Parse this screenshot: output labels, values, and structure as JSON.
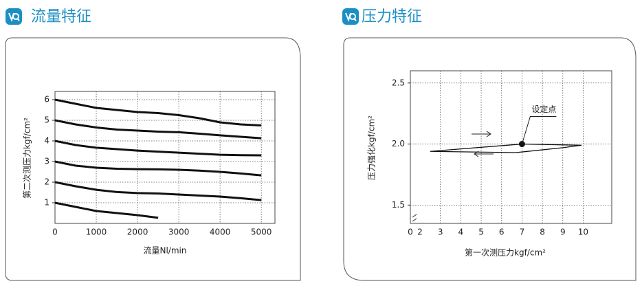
{
  "chart_data": [
    {
      "type": "line",
      "title": "流量特征",
      "x_label": "流量Nl/min",
      "y_label": "第二次测压力kgf/cm²",
      "x": [
        0,
        500,
        1000,
        1500,
        2000,
        2500,
        3000,
        3500,
        4000,
        4500,
        5000
      ],
      "series": [
        {
          "color": "#111111",
          "values": [
            6.0,
            5.8,
            5.6,
            5.5,
            5.4,
            5.35,
            5.25,
            5.1,
            4.9,
            4.8,
            4.75
          ]
        },
        {
          "color": "#111111",
          "values": [
            5.0,
            4.8,
            4.65,
            4.55,
            4.5,
            4.45,
            4.42,
            4.35,
            4.27,
            4.2,
            4.13
          ]
        },
        {
          "color": "#111111",
          "values": [
            4.0,
            3.8,
            3.67,
            3.6,
            3.53,
            3.48,
            3.43,
            3.38,
            3.33,
            3.31,
            3.3
          ]
        },
        {
          "color": "#111111",
          "values": [
            3.0,
            2.8,
            2.7,
            2.65,
            2.63,
            2.62,
            2.6,
            2.56,
            2.5,
            2.42,
            2.33
          ]
        },
        {
          "color": "#111111",
          "values": [
            2.0,
            1.8,
            1.63,
            1.52,
            1.47,
            1.45,
            1.4,
            1.35,
            1.3,
            1.22,
            1.13
          ]
        },
        {
          "color": "#111111",
          "values": [
            1.0,
            0.8,
            0.6,
            0.5,
            0.4,
            0.27,
            null,
            null,
            null,
            null,
            null
          ]
        }
      ],
      "xlim": [
        0,
        5330
      ],
      "ylim": [
        0,
        6.4
      ],
      "xticks": [
        0,
        1000,
        2000,
        3000,
        4000,
        5000
      ],
      "yticks": [
        1,
        2,
        3,
        4,
        5,
        6
      ],
      "grid": true
    },
    {
      "type": "line",
      "title": "压力特征",
      "x_label": "第一次测压力kgf/cm²",
      "y_label": "压力强化kgf/cm²",
      "x": [
        2.5,
        7,
        9.9,
        9,
        6.7,
        2.5
      ],
      "series": [
        {
          "color": "#111111",
          "values": [
            1.94,
            2.0,
            1.99,
            1.97,
            1.93,
            1.94
          ]
        }
      ],
      "annotations": [
        {
          "text": "设定点",
          "x": 7,
          "y": 2.0
        }
      ],
      "xlim": [
        0,
        11.4
      ],
      "ylim": [
        1.35,
        2.6
      ],
      "xticks": [
        0,
        2,
        3,
        4,
        5,
        6,
        7,
        8,
        9,
        10
      ],
      "yticks": [
        {
          "value": 1.5,
          "label": "1.5"
        },
        {
          "value": 2.0,
          "label": "2.0"
        },
        {
          "value": 2.5,
          "label": "2.5"
        }
      ],
      "grid": true
    }
  ]
}
